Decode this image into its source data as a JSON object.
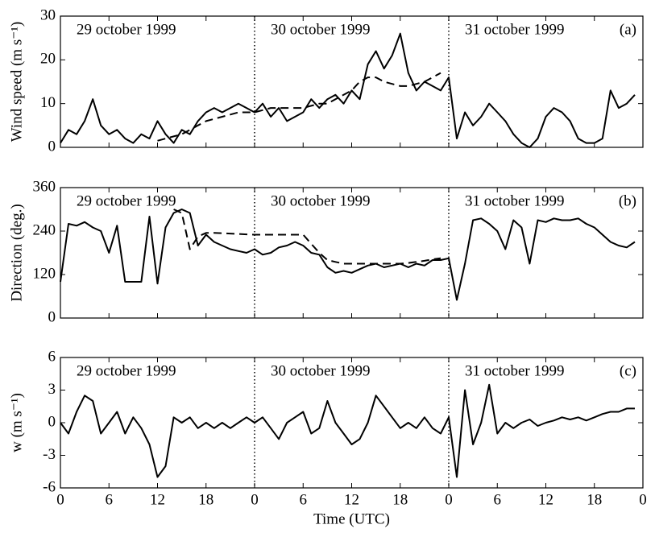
{
  "chart_data": [
    {
      "type": "line",
      "y_label": "Wind speed (m s⁻¹)",
      "panel_label": "(a)",
      "annotations": [
        "29 october 1999",
        "30 october 1999",
        "31 october 1999"
      ],
      "x": [
        0,
        1,
        2,
        3,
        4,
        5,
        6,
        7,
        8,
        9,
        10,
        11,
        12,
        13,
        14,
        15,
        16,
        17,
        18,
        19,
        20,
        21,
        22,
        23,
        24,
        25,
        26,
        27,
        28,
        29,
        30,
        31,
        32,
        33,
        34,
        35,
        36,
        37,
        38,
        39,
        40,
        41,
        42,
        43,
        44,
        45,
        46,
        47,
        48,
        49,
        50,
        51,
        52,
        53,
        54,
        55,
        56,
        57,
        58,
        59,
        60,
        61,
        62,
        63,
        64,
        65,
        66,
        67,
        68,
        69,
        70,
        71
      ],
      "xlim": [
        0,
        72
      ],
      "ylim": [
        0,
        30
      ],
      "yticks": [
        0,
        10,
        20,
        30
      ],
      "vlines": [
        24,
        48
      ],
      "series": [
        {
          "color": "#000000",
          "style": "solid",
          "values": [
            1,
            4,
            3,
            6,
            11,
            5,
            3,
            4,
            2,
            1,
            3,
            2,
            6,
            3,
            1,
            4,
            3,
            6,
            8,
            9,
            8,
            9,
            10,
            9,
            8,
            10,
            7,
            9,
            6,
            7,
            8,
            11,
            9,
            11,
            12,
            10,
            13,
            11,
            19,
            22,
            18,
            21,
            26,
            17,
            13,
            15,
            14,
            13,
            16,
            2,
            8,
            5,
            7,
            10,
            8,
            6,
            3,
            1,
            0,
            2,
            7,
            9,
            8,
            6,
            2,
            1,
            1,
            2,
            13,
            9,
            10,
            12
          ]
        },
        {
          "color": "#000000",
          "style": "dashed",
          "values": [
            null,
            null,
            null,
            null,
            null,
            null,
            null,
            null,
            null,
            null,
            null,
            null,
            1.5,
            2,
            2.5,
            3,
            4,
            5,
            6,
            6.5,
            7,
            7.5,
            8,
            8,
            8,
            8.5,
            9,
            9,
            9,
            9,
            9,
            9.5,
            10,
            10,
            11,
            12,
            13,
            15,
            16,
            16,
            15,
            14.5,
            14,
            14,
            14.5,
            15,
            16,
            17,
            null,
            null,
            null,
            null,
            null,
            null,
            null,
            null,
            null,
            null,
            null,
            null,
            null,
            null,
            null,
            null,
            null,
            null,
            null,
            null,
            null,
            null,
            null,
            null
          ]
        }
      ]
    },
    {
      "type": "line",
      "y_label": "Direction (deg.)",
      "panel_label": "(b)",
      "annotations": [
        "29 october 1999",
        "30 october 1999",
        "31 october 1999"
      ],
      "x": [
        0,
        1,
        2,
        3,
        4,
        5,
        6,
        7,
        8,
        9,
        10,
        11,
        12,
        13,
        14,
        15,
        16,
        17,
        18,
        19,
        20,
        21,
        22,
        23,
        24,
        25,
        26,
        27,
        28,
        29,
        30,
        31,
        32,
        33,
        34,
        35,
        36,
        37,
        38,
        39,
        40,
        41,
        42,
        43,
        44,
        45,
        46,
        47,
        48,
        49,
        50,
        51,
        52,
        53,
        54,
        55,
        56,
        57,
        58,
        59,
        60,
        61,
        62,
        63,
        64,
        65,
        66,
        67,
        68,
        69,
        70,
        71
      ],
      "xlim": [
        0,
        72
      ],
      "ylim": [
        0,
        360
      ],
      "yticks": [
        0,
        120,
        240,
        360
      ],
      "vlines": [
        24,
        48
      ],
      "series": [
        {
          "color": "#000000",
          "style": "solid",
          "values": [
            100,
            260,
            255,
            265,
            250,
            240,
            180,
            255,
            100,
            100,
            100,
            280,
            95,
            250,
            290,
            300,
            290,
            200,
            230,
            210,
            200,
            190,
            185,
            180,
            190,
            175,
            180,
            195,
            200,
            210,
            200,
            180,
            175,
            140,
            125,
            130,
            125,
            135,
            145,
            150,
            140,
            145,
            150,
            140,
            150,
            145,
            160,
            160,
            165,
            50,
            150,
            270,
            275,
            260,
            240,
            190,
            270,
            250,
            150,
            270,
            265,
            275,
            270,
            270,
            275,
            260,
            250,
            230,
            210,
            200,
            195,
            210
          ]
        },
        {
          "color": "#000000",
          "style": "dashed",
          "values": [
            null,
            null,
            null,
            null,
            null,
            null,
            null,
            null,
            null,
            null,
            null,
            null,
            null,
            null,
            300,
            290,
            190,
            225,
            235,
            235,
            234,
            233,
            232,
            231,
            230,
            230,
            230,
            230,
            230,
            230,
            230,
            205,
            180,
            160,
            155,
            150,
            150,
            150,
            150,
            150,
            150,
            150,
            150,
            152,
            155,
            158,
            162,
            165,
            null,
            null,
            null,
            null,
            null,
            null,
            null,
            null,
            null,
            null,
            null,
            null,
            null,
            null,
            null,
            null,
            null,
            null,
            null,
            null,
            null,
            null,
            null,
            null
          ]
        }
      ]
    },
    {
      "type": "line",
      "y_label": "w (m s⁻¹)",
      "x_label": "Time (UTC)",
      "panel_label": "(c)",
      "annotations": [
        "29 october 1999",
        "30 october 1999",
        "31 october 1999"
      ],
      "x": [
        0,
        1,
        2,
        3,
        4,
        5,
        6,
        7,
        8,
        9,
        10,
        11,
        12,
        13,
        14,
        15,
        16,
        17,
        18,
        19,
        20,
        21,
        22,
        23,
        24,
        25,
        26,
        27,
        28,
        29,
        30,
        31,
        32,
        33,
        34,
        35,
        36,
        37,
        38,
        39,
        40,
        41,
        42,
        43,
        44,
        45,
        46,
        47,
        48,
        49,
        50,
        51,
        52,
        53,
        54,
        55,
        56,
        57,
        58,
        59,
        60,
        61,
        62,
        63,
        64,
        65,
        66,
        67,
        68,
        69,
        70,
        71
      ],
      "xlim": [
        0,
        72
      ],
      "ylim": [
        -6,
        6
      ],
      "yticks": [
        -6,
        -3,
        0,
        3,
        6
      ],
      "vlines": [
        24,
        48
      ],
      "xticks": [
        0,
        6,
        12,
        18,
        {
          "value": 24,
          "label": "0"
        },
        {
          "value": 30,
          "label": "6"
        },
        {
          "value": 36,
          "label": "12"
        },
        {
          "value": 42,
          "label": "18"
        },
        {
          "value": 48,
          "label": "0"
        },
        {
          "value": 54,
          "label": "6"
        },
        {
          "value": 60,
          "label": "12"
        },
        {
          "value": 66,
          "label": "18"
        },
        {
          "value": 72,
          "label": "0"
        }
      ],
      "series": [
        {
          "color": "#000000",
          "style": "solid",
          "values": [
            0,
            -1,
            1,
            2.5,
            2,
            -1,
            0,
            1,
            -1,
            0.5,
            -0.5,
            -2,
            -5,
            -4,
            0.5,
            0,
            0.5,
            -0.5,
            0,
            -0.5,
            0,
            -0.5,
            0,
            0.5,
            0,
            0.5,
            -0.5,
            -1.5,
            0,
            0.5,
            1,
            -1,
            -0.5,
            2,
            0,
            -1,
            -2,
            -1.5,
            0,
            2.5,
            1.5,
            0.5,
            -0.5,
            0,
            -0.5,
            0.5,
            -0.5,
            -1,
            0.5,
            -5,
            3,
            -2,
            0,
            3.5,
            -1,
            0,
            -0.5,
            0,
            0.3,
            -0.3,
            0,
            0.2,
            0.5,
            0.3,
            0.5,
            0.2,
            0.5,
            0.8,
            1,
            1,
            1.3,
            1.3
          ]
        }
      ]
    }
  ]
}
